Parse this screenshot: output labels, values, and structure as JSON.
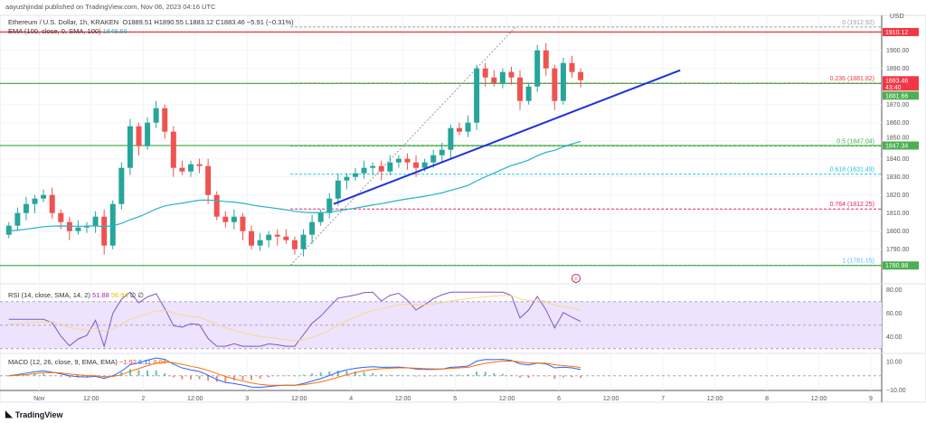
{
  "header": {
    "published": "aayushjindal published on TradingView.com, Nov 06, 2023 04:16 UTC",
    "symbol": "Ethereum / U.S. Dollar, 1h, KRAKEN",
    "ohlc": "O1889.51  H1890.55  L1883.12  C1883.46  −5.91 (−0.31%)",
    "ema_label": "EMA (100, close, 0, SMA, 100)",
    "ema_value": "1848.66"
  },
  "axis": {
    "currency": "USD",
    "price_ticks": [
      1790,
      1800,
      1810,
      1820,
      1830,
      1840,
      1850,
      1860,
      1870,
      1890,
      1900
    ],
    "rsi_ticks": [
      "80.00",
      "60.00",
      "40.00"
    ],
    "macd_ticks": [
      "10.00",
      "−10.00"
    ],
    "time_labels": [
      {
        "label": "Nov",
        "t": "2023-11-01T00:00"
      },
      {
        "label": "12:00",
        "t": "2023-11-01T12:00"
      },
      {
        "label": "2",
        "t": "2023-11-02T00:00"
      },
      {
        "label": "12:00",
        "t": "2023-11-02T12:00"
      },
      {
        "label": "3",
        "t": "2023-11-03T00:00"
      },
      {
        "label": "12:00",
        "t": "2023-11-03T12:00"
      },
      {
        "label": "4",
        "t": "2023-11-04T00:00"
      },
      {
        "label": "12:00",
        "t": "2023-11-04T12:00"
      },
      {
        "label": "5",
        "t": "2023-11-05T00:00"
      },
      {
        "label": "12:00",
        "t": "2023-11-05T12:00"
      },
      {
        "label": "6",
        "t": "2023-11-06T00:00"
      },
      {
        "label": "12:00",
        "t": "2023-11-06T12:00"
      },
      {
        "label": "7",
        "t": "2023-11-07T00:00"
      },
      {
        "label": "12:00",
        "t": "2023-11-07T12:00"
      },
      {
        "label": "8",
        "t": "2023-11-08T00:00"
      },
      {
        "label": "12:00",
        "t": "2023-11-08T12:00"
      },
      {
        "label": "9",
        "t": "2023-11-09T00:00"
      }
    ]
  },
  "price_badges": [
    {
      "value": "1910.12",
      "price": 1910.12,
      "color": "#f23645"
    },
    {
      "value": "1883.46",
      "sub": "43:40",
      "price": 1883.46,
      "color": "#f23645"
    },
    {
      "value": "1881.66",
      "price": 1881.66,
      "color": "#4caf50"
    },
    {
      "value": "1847.34",
      "price": 1847.34,
      "color": "#4caf50"
    },
    {
      "value": "1780.98",
      "price": 1780.98,
      "color": "#4caf50"
    }
  ],
  "horizontal_lines": [
    {
      "price": 1910.12,
      "color": "#f23645"
    },
    {
      "price": 1881.66,
      "color": "#4caf50"
    },
    {
      "price": 1847.34,
      "color": "#4caf50"
    },
    {
      "price": 1780.98,
      "color": "#4caf50"
    }
  ],
  "fib_levels": [
    {
      "label": "0 (1912.92)",
      "price": 1912.92,
      "color": "#9e9e9e"
    },
    {
      "label": "0.236 (1881.82)",
      "price": 1881.82,
      "color": "#f23645"
    },
    {
      "label": "0.5 (1847.04)",
      "price": 1847.04,
      "color": "#4caf50"
    },
    {
      "label": "0.618 (1831.49)",
      "price": 1831.49,
      "color": "#26c6da"
    },
    {
      "label": "0.764 (1812.25)",
      "price": 1812.25,
      "color": "#e91e63"
    },
    {
      "label": "1 (1781.15)",
      "price": 1781.15,
      "color": "#64b5f6"
    }
  ],
  "trend_line": {
    "start": {
      "t": "2023-11-03T20:00",
      "price": 1815
    },
    "end": {
      "t": "2023-11-07T04:00",
      "price": 1889
    },
    "color": "#2130d9"
  },
  "chart_data": {
    "type": "candlestick",
    "start": "2023-10-31T16:00",
    "interval_hours": 2,
    "closes": [
      1803,
      1810,
      1815,
      1818,
      1820,
      1810,
      1805,
      1800,
      1802,
      1803,
      1808,
      1792,
      1815,
      1835,
      1858,
      1847,
      1860,
      1868,
      1855,
      1835,
      1833,
      1837,
      1836,
      1820,
      1808,
      1805,
      1808,
      1800,
      1792,
      1795,
      1798,
      1797,
      1795,
      1790,
      1798,
      1805,
      1810,
      1818,
      1828,
      1830,
      1832,
      1835,
      1836,
      1833,
      1838,
      1840,
      1838,
      1835,
      1838,
      1842,
      1845,
      1857,
      1855,
      1860,
      1890,
      1885,
      1882,
      1888,
      1885,
      1872,
      1880,
      1900,
      1890,
      1872,
      1893,
      1888,
      1883.46
    ],
    "first_open": 1798,
    "up_color": "#26a69a",
    "down_color": "#ef5350"
  },
  "indicators": {
    "rsi": {
      "label": "RSI (14, close, SMA, 14, 2)",
      "value": "51.88",
      "sma": "56.94",
      "extra": "∅  ∅",
      "color": "#7e57c2",
      "band_color": "#ede3fd"
    },
    "macd": {
      "label": "MACD (12, 26, close, 9, EMA, EMA)",
      "hist": "−1.92",
      "macd": "6.11",
      "signal": "8.04"
    }
  },
  "footer": {
    "brand": "TradingView"
  }
}
